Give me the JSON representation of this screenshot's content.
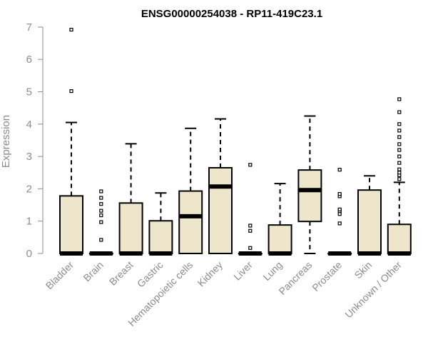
{
  "chart_data": {
    "type": "box",
    "title": "ENSG00000254038 - RP11-419C23.1",
    "ylabel": "Expression",
    "xlabel": "",
    "ylim": [
      0,
      7
    ],
    "yticks": [
      "0",
      "1",
      "2",
      "3",
      "4",
      "5",
      "6",
      "7"
    ],
    "box_fill": "#ede6cb",
    "categories": [
      "Bladder",
      "Brain",
      "Breast",
      "Gastric",
      "Hematopoietic cells",
      "Kidney",
      "Liver",
      "Lung",
      "Pancreas",
      "Prostate",
      "Skin",
      "Unknown / Other"
    ],
    "boxes": [
      {
        "category": "Bladder",
        "whisker_low": 0,
        "q1": 0,
        "median": 0,
        "q3": 1.78,
        "whisker_high": 4.05,
        "outliers": [
          5.02,
          6.92
        ]
      },
      {
        "category": "Brain",
        "whisker_low": 0,
        "q1": 0,
        "median": 0,
        "q3": 0,
        "whisker_high": 0,
        "outliers": [
          0.42,
          0.97,
          1.18,
          1.32,
          1.53,
          1.72,
          1.92
        ]
      },
      {
        "category": "Breast",
        "whisker_low": 0,
        "q1": 0,
        "median": 0,
        "q3": 1.56,
        "whisker_high": 3.39,
        "outliers": []
      },
      {
        "category": "Gastric",
        "whisker_low": 0,
        "q1": 0,
        "median": 0,
        "q3": 1.01,
        "whisker_high": 1.87,
        "outliers": []
      },
      {
        "category": "Hematopoietic cells",
        "whisker_low": 0,
        "q1": 0,
        "median": 1.15,
        "q3": 1.93,
        "whisker_high": 3.87,
        "outliers": []
      },
      {
        "category": "Kidney",
        "whisker_low": 0,
        "q1": 0,
        "median": 2.07,
        "q3": 2.65,
        "whisker_high": 4.16,
        "outliers": []
      },
      {
        "category": "Liver",
        "whisker_low": 0,
        "q1": 0,
        "median": 0,
        "q3": 0,
        "whisker_high": 0,
        "outliers": [
          0.17,
          0.7,
          0.86,
          2.74
        ]
      },
      {
        "category": "Lung",
        "whisker_low": 0,
        "q1": 0,
        "median": 0,
        "q3": 0.88,
        "whisker_high": 2.16,
        "outliers": []
      },
      {
        "category": "Pancreas",
        "whisker_low": 0,
        "q1": 0.99,
        "median": 1.96,
        "q3": 2.58,
        "whisker_high": 4.25,
        "outliers": []
      },
      {
        "category": "Prostate",
        "whisker_low": 0,
        "q1": 0,
        "median": 0,
        "q3": 0,
        "whisker_high": 0,
        "outliers": [
          0.93,
          1.22,
          1.31,
          1.36,
          1.77,
          1.84,
          2.59
        ]
      },
      {
        "category": "Skin",
        "whisker_low": 0,
        "q1": 0,
        "median": 0,
        "q3": 1.96,
        "whisker_high": 2.4,
        "outliers": []
      },
      {
        "category": "Unknown / Other",
        "whisker_low": 0,
        "q1": 0,
        "median": 0,
        "q3": 0.9,
        "whisker_high": 2.2,
        "outliers": [
          2.3,
          2.42,
          2.5,
          2.6,
          2.8,
          3.0,
          3.2,
          3.38,
          3.6,
          3.8,
          4.0,
          4.37,
          4.77
        ]
      }
    ]
  }
}
